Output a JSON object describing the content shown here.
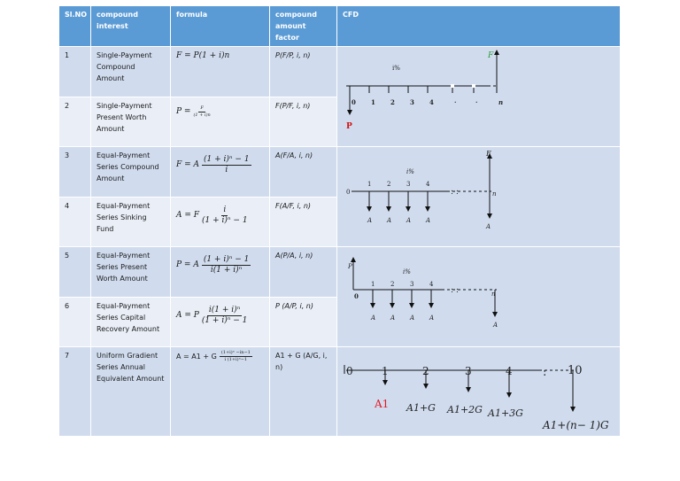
{
  "headers": {
    "slno": "Sl.NO",
    "compound_interest": "compound interest",
    "formula": "formula",
    "factor": "compound amount factor",
    "cfd": "CFD"
  },
  "rows": [
    {
      "no": "1",
      "name": "Single-Payment Compound Amount",
      "formula": "F = P(1 + i)n",
      "factor": "P(F/P, i, n)"
    },
    {
      "no": "2",
      "name": "Single-Payment Present Worth Amount",
      "formula_lhs": "P =",
      "formula_num": "F",
      "formula_den": "(1 + i)n",
      "factor": "F(P/F, i, n)"
    },
    {
      "no": "3",
      "name": "Equal-Payment Series Compound Amount",
      "formula_lhs": "F = A",
      "formula_num": "(1 + i)ⁿ − 1",
      "formula_den": "i",
      "factor": "A(F/A, i, n)"
    },
    {
      "no": "4",
      "name": "Equal-Payment Series Sinking Fund",
      "formula_lhs": "A = F",
      "formula_num": "i",
      "formula_den": "(1 + i)ⁿ − 1",
      "factor": "F(A/F, i, n)"
    },
    {
      "no": "5",
      "name": "Equal-Payment Series Present Worth Amount",
      "formula_lhs": "P = A",
      "formula_num": "(1 + i)ⁿ − 1",
      "formula_den": "i(1 + i)ⁿ",
      "factor": "A(P/A, i, n)"
    },
    {
      "no": "6",
      "name": "Equal-Payment Series Capital Recovery Amount",
      "formula_lhs": "A = P",
      "formula_num": "i(1 + i)ⁿ",
      "formula_den": "(1 + i)ⁿ − 1",
      "factor": "P (A/P, i, n)"
    },
    {
      "no": "7",
      "name": "Uniform Gradient Series Annual Equivalent Amount",
      "formula_lhs": "A = A1 + G",
      "formula_num": "(1+i)ⁿ −in−1",
      "formula_den": "i (1+i)ⁿ−1",
      "factor": "A1 + G (A/G, i, n)"
    }
  ],
  "cfd1": {
    "rate": "i%",
    "future": "F",
    "present": "P",
    "periods": [
      "0",
      "1",
      "2",
      "3",
      "4",
      "·",
      "·",
      "n"
    ]
  },
  "cfd2": {
    "rate": "i%",
    "future": "F",
    "payment": "A",
    "periods": [
      "0",
      "1",
      "2",
      "3",
      "4",
      "n"
    ]
  },
  "cfd3": {
    "rate": "i%",
    "present": "P",
    "payment": "A",
    "periods": [
      "0",
      "1",
      "2",
      "3",
      "4",
      "n"
    ]
  },
  "cfd4": {
    "periods": [
      "0",
      "1",
      "2",
      "3",
      "4",
      "10"
    ],
    "amounts": [
      "A1",
      "A1+G",
      "A1+2G",
      "A1+3G",
      "A1+(n− 1)G"
    ],
    "accent": "#e01b24"
  },
  "colors": {
    "header": "#5b9bd5",
    "row_dark": "#d0dcee",
    "row_light": "#e9eef7",
    "future_label": "#2e9b3a",
    "present_label": "#d01010"
  }
}
